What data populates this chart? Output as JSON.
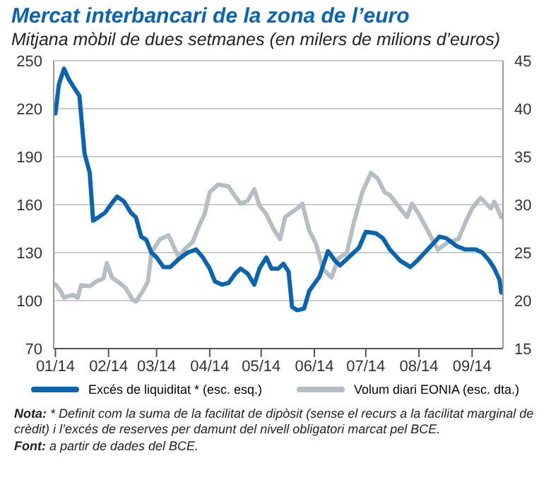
{
  "chart_data": {
    "type": "line",
    "title": "Mercat interbancari de la zona de l’euro",
    "subtitle": "Mitjana mòbil de dues setmanes (en milers de milions d’euros)",
    "xlim": [
      "2013-12-31",
      "2014-09-19"
    ],
    "xticks": [
      {
        "value": "2014-01-01",
        "label": "01/14"
      },
      {
        "value": "2014-02-01",
        "label": "02/14"
      },
      {
        "value": "2014-03-01",
        "label": "03/14"
      },
      {
        "value": "2014-04-01",
        "label": "04/14"
      },
      {
        "value": "2014-05-01",
        "label": "05/14"
      },
      {
        "value": "2014-06-01",
        "label": "06/14"
      },
      {
        "value": "2014-07-01",
        "label": "07/14"
      },
      {
        "value": "2014-08-01",
        "label": "08/14"
      },
      {
        "value": "2014-09-01",
        "label": "09/14"
      }
    ],
    "ylim": [
      70,
      250
    ],
    "yticks": [
      70,
      100,
      130,
      160,
      190,
      220,
      250
    ],
    "y2lim": [
      15,
      45
    ],
    "y2ticks": [
      15,
      20,
      25,
      30,
      35,
      40,
      45
    ],
    "grid": "y",
    "legend": "bottom",
    "line_style": "solid",
    "series": [
      {
        "name": "Excés de liquiditat * (esc. esq.)",
        "color": "#0a64b0",
        "x": [
          "2014-01-01",
          "2014-01-03",
          "2014-01-06",
          "2014-01-09",
          "2014-01-12",
          "2014-01-15",
          "2014-01-18",
          "2014-01-21",
          "2014-01-23",
          "2014-01-26",
          "2014-01-30",
          "2014-02-03",
          "2014-02-06",
          "2014-02-10",
          "2014-02-14",
          "2014-02-17",
          "2014-02-20",
          "2014-02-23",
          "2014-02-26",
          "2014-03-01",
          "2014-03-05",
          "2014-03-09",
          "2014-03-14",
          "2014-03-19",
          "2014-03-24",
          "2014-03-28",
          "2014-04-01",
          "2014-04-04",
          "2014-04-08",
          "2014-04-12",
          "2014-04-16",
          "2014-04-19",
          "2014-04-23",
          "2014-04-27",
          "2014-04-30",
          "2014-05-04",
          "2014-05-07",
          "2014-05-11",
          "2014-05-14",
          "2014-05-17",
          "2014-05-19",
          "2014-05-22",
          "2014-05-26",
          "2014-05-29",
          "2014-06-04",
          "2014-06-09",
          "2014-06-13",
          "2014-06-16",
          "2014-06-21",
          "2014-06-27",
          "2014-07-01",
          "2014-07-07",
          "2014-07-11",
          "2014-07-15",
          "2014-07-21",
          "2014-07-27",
          "2014-07-31",
          "2014-08-07",
          "2014-08-13",
          "2014-08-17",
          "2014-08-23",
          "2014-08-28",
          "2014-09-03",
          "2014-09-07",
          "2014-09-11",
          "2014-09-14",
          "2014-09-17",
          "2014-09-18"
        ],
        "values": [
          217,
          235,
          245,
          238,
          233,
          228,
          192,
          180,
          150,
          152,
          155,
          161,
          165,
          162,
          155,
          152,
          140,
          138,
          130,
          127,
          121,
          121,
          126,
          130,
          132,
          127,
          120,
          112,
          110,
          111,
          117,
          120,
          117,
          110,
          120,
          127,
          120,
          120,
          123,
          118,
          96,
          94,
          95,
          106,
          115,
          131,
          125,
          122,
          127,
          133,
          143,
          142,
          139,
          132,
          125,
          121,
          125,
          133,
          140,
          139,
          134,
          132,
          132,
          130,
          125,
          120,
          113,
          105
        ]
      },
      {
        "name": "Volum diari EONIA (esc. dta.)",
        "color": "#b4bec3",
        "axis": "y2",
        "x": [
          "2014-01-01",
          "2014-01-04",
          "2014-01-06",
          "2014-01-11",
          "2014-01-14",
          "2014-01-16",
          "2014-01-21",
          "2014-01-25",
          "2014-01-29",
          "2014-01-31",
          "2014-02-03",
          "2014-02-07",
          "2014-02-11",
          "2014-02-15",
          "2014-02-17",
          "2014-02-21",
          "2014-02-24",
          "2014-02-26",
          "2014-03-03",
          "2014-03-08",
          "2014-03-11",
          "2014-03-14",
          "2014-03-17",
          "2014-03-22",
          "2014-03-26",
          "2014-03-29",
          "2014-04-01",
          "2014-04-06",
          "2014-04-12",
          "2014-04-14",
          "2014-04-19",
          "2014-04-23",
          "2014-04-27",
          "2014-04-30",
          "2014-05-04",
          "2014-05-08",
          "2014-05-12",
          "2014-05-15",
          "2014-05-22",
          "2014-05-25",
          "2014-05-29",
          "2014-06-02",
          "2014-06-06",
          "2014-06-11",
          "2014-06-15",
          "2014-06-20",
          "2014-06-24",
          "2014-06-29",
          "2014-07-04",
          "2014-07-08",
          "2014-07-12",
          "2014-07-15",
          "2014-07-21",
          "2014-07-25",
          "2014-07-28",
          "2014-08-01",
          "2014-08-07",
          "2014-08-12",
          "2014-08-18",
          "2014-08-24",
          "2014-08-28",
          "2014-09-01",
          "2014-09-06",
          "2014-09-12",
          "2014-09-14",
          "2014-09-18"
        ],
        "values": [
          21.7,
          21.0,
          20.3,
          20.6,
          20.3,
          21.6,
          21.5,
          22.0,
          22.3,
          23.9,
          22.4,
          21.9,
          21.3,
          20.1,
          19.9,
          21.0,
          22.0,
          25.0,
          26.4,
          26.8,
          25.6,
          24.5,
          25.3,
          26.1,
          27.9,
          29.0,
          31.3,
          32.1,
          31.9,
          31.3,
          30.1,
          30.4,
          31.6,
          29.9,
          29.0,
          27.5,
          26.4,
          28.7,
          29.6,
          30.1,
          27.3,
          25.9,
          23.3,
          22.4,
          24.4,
          25.0,
          28.1,
          31.3,
          33.3,
          32.7,
          31.3,
          31.0,
          29.6,
          28.7,
          30.1,
          29.0,
          27.0,
          25.3,
          26.1,
          26.4,
          28.1,
          29.6,
          30.7,
          29.6,
          30.3,
          28.7
        ]
      }
    ],
    "annotations": [
      "Nota: * Definit com la suma de la facilitat de dipòsit (sense el recurs a la facilitat marginal de crèdit) i l’excés de reserves per damunt del nivell obligatori marcat pel BCE.",
      "Font: a partir de dades del BCE."
    ]
  }
}
